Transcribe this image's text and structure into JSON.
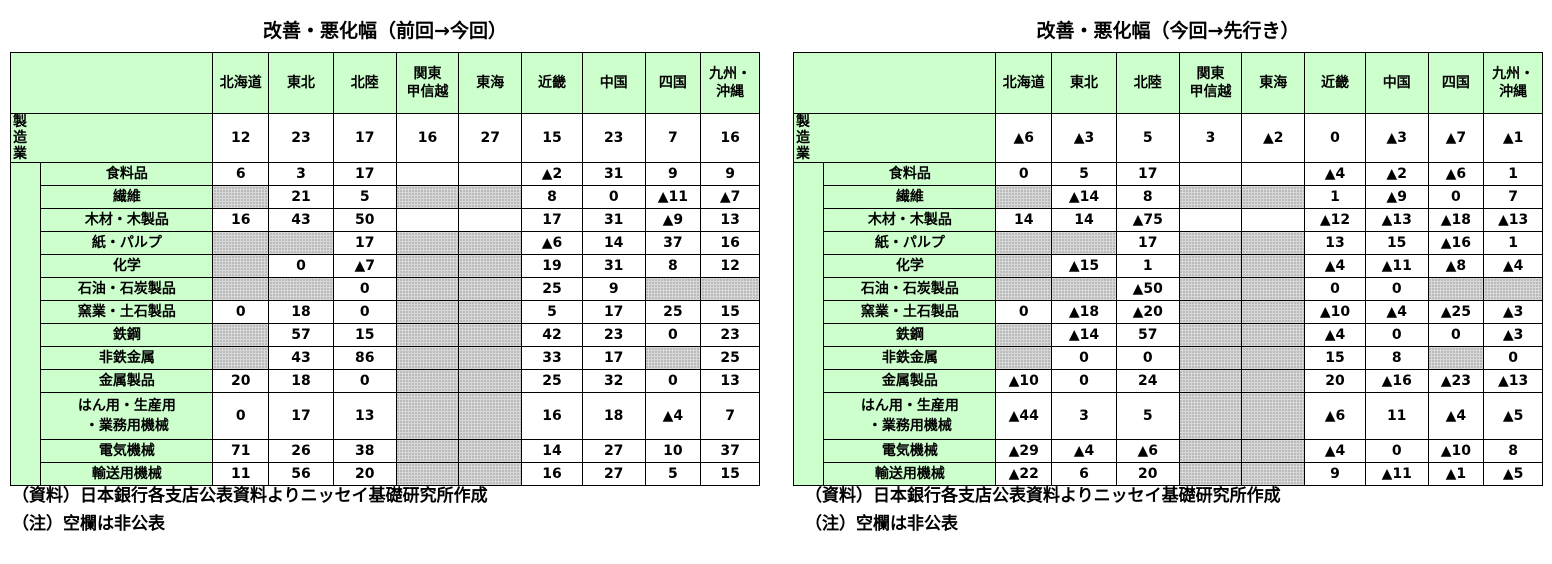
{
  "left": {
    "title": "改善・悪化幅（前回→今回）",
    "source": "（資料）日本銀行各支店公表資料よりニッセイ基礎研究所作成",
    "note": "（注）空欄は非公表"
  },
  "right": {
    "title": "改善・悪化幅（今回→先行き）",
    "source": "（資料）日本銀行各支店公表資料よりニッセイ基礎研究所作成",
    "note": "（注）空欄は非公表"
  },
  "regions": [
    {
      "line1": "北海道",
      "line2": ""
    },
    {
      "line1": "東北",
      "line2": ""
    },
    {
      "line1": "北陸",
      "line2": ""
    },
    {
      "line1": "関東",
      "line2": "甲信越"
    },
    {
      "line1": "東海",
      "line2": ""
    },
    {
      "line1": "近畿",
      "line2": ""
    },
    {
      "line1": "中国",
      "line2": ""
    },
    {
      "line1": "四国",
      "line2": ""
    },
    {
      "line1": "九州・",
      "line2": "沖縄"
    }
  ],
  "rows": [
    {
      "line1": "製造業",
      "line2": "",
      "top": true
    },
    {
      "line1": "食料品",
      "line2": ""
    },
    {
      "line1": "繊維",
      "line2": ""
    },
    {
      "line1": "木材・木製品",
      "line2": ""
    },
    {
      "line1": "紙・パルプ",
      "line2": ""
    },
    {
      "line1": "化学",
      "line2": ""
    },
    {
      "line1": "石油・石炭製品",
      "line2": ""
    },
    {
      "line1": "窯業・土石製品",
      "line2": ""
    },
    {
      "line1": "鉄鋼",
      "line2": ""
    },
    {
      "line1": "非鉄金属",
      "line2": ""
    },
    {
      "line1": "金属製品",
      "line2": ""
    },
    {
      "line1": "はん用・生産用",
      "line2": "・業務用機械",
      "tall": true
    },
    {
      "line1": "電気機械",
      "line2": ""
    },
    {
      "line1": "輸送用機械",
      "line2": ""
    }
  ],
  "table_left": [
    [
      "12",
      "23",
      "17",
      "16",
      "27",
      "15",
      "23",
      "7",
      "16"
    ],
    [
      "6",
      "3",
      "17",
      "",
      "",
      "▲2",
      "31",
      "9",
      "9"
    ],
    [
      null,
      "21",
      "5",
      null,
      null,
      "8",
      "0",
      "▲11",
      "▲7"
    ],
    [
      "16",
      "43",
      "50",
      "",
      "",
      "17",
      "31",
      "▲9",
      "13"
    ],
    [
      null,
      null,
      "17",
      null,
      null,
      "▲6",
      "14",
      "37",
      "16"
    ],
    [
      null,
      "0",
      "▲7",
      null,
      null,
      "19",
      "31",
      "8",
      "12"
    ],
    [
      null,
      null,
      "0",
      null,
      null,
      "25",
      "9",
      null,
      null
    ],
    [
      "0",
      "18",
      "0",
      null,
      null,
      "5",
      "17",
      "25",
      "15"
    ],
    [
      null,
      "57",
      "15",
      null,
      null,
      "42",
      "23",
      "0",
      "23"
    ],
    [
      null,
      "43",
      "86",
      null,
      null,
      "33",
      "17",
      null,
      "25"
    ],
    [
      "20",
      "18",
      "0",
      null,
      null,
      "25",
      "32",
      "0",
      "13"
    ],
    [
      "0",
      "17",
      "13",
      null,
      null,
      "16",
      "18",
      "▲4",
      "7"
    ],
    [
      "71",
      "26",
      "38",
      null,
      null,
      "14",
      "27",
      "10",
      "37"
    ],
    [
      "11",
      "56",
      "20",
      null,
      null,
      "16",
      "27",
      "5",
      "15"
    ]
  ],
  "table_right": [
    [
      "▲6",
      "▲3",
      "5",
      "3",
      "▲2",
      "0",
      "▲3",
      "▲7",
      "▲1"
    ],
    [
      "0",
      "5",
      "17",
      "",
      "",
      "▲4",
      "▲2",
      "▲6",
      "1"
    ],
    [
      null,
      "▲14",
      "8",
      null,
      null,
      "1",
      "▲9",
      "0",
      "7"
    ],
    [
      "14",
      "14",
      "▲75",
      "",
      "",
      "▲12",
      "▲13",
      "▲18",
      "▲13"
    ],
    [
      null,
      null,
      "17",
      null,
      null,
      "13",
      "15",
      "▲16",
      "1"
    ],
    [
      null,
      "▲15",
      "1",
      null,
      null,
      "▲4",
      "▲11",
      "▲8",
      "▲4"
    ],
    [
      null,
      null,
      "▲50",
      null,
      null,
      "0",
      "0",
      null,
      null
    ],
    [
      "0",
      "▲18",
      "▲20",
      null,
      null,
      "▲10",
      "▲4",
      "▲25",
      "▲3"
    ],
    [
      null,
      "▲14",
      "57",
      null,
      null,
      "▲4",
      "0",
      "0",
      "▲3"
    ],
    [
      null,
      "0",
      "0",
      null,
      null,
      "15",
      "8",
      null,
      "0"
    ],
    [
      "▲10",
      "0",
      "24",
      null,
      null,
      "20",
      "▲16",
      "▲23",
      "▲13"
    ],
    [
      "▲44",
      "3",
      "5",
      null,
      null,
      "▲6",
      "11",
      "▲4",
      "▲5"
    ],
    [
      "▲29",
      "▲4",
      "▲6",
      null,
      null,
      "▲4",
      "0",
      "▲10",
      "8"
    ],
    [
      "▲22",
      "6",
      "20",
      null,
      null,
      "9",
      "▲11",
      "▲1",
      "▲5"
    ]
  ]
}
